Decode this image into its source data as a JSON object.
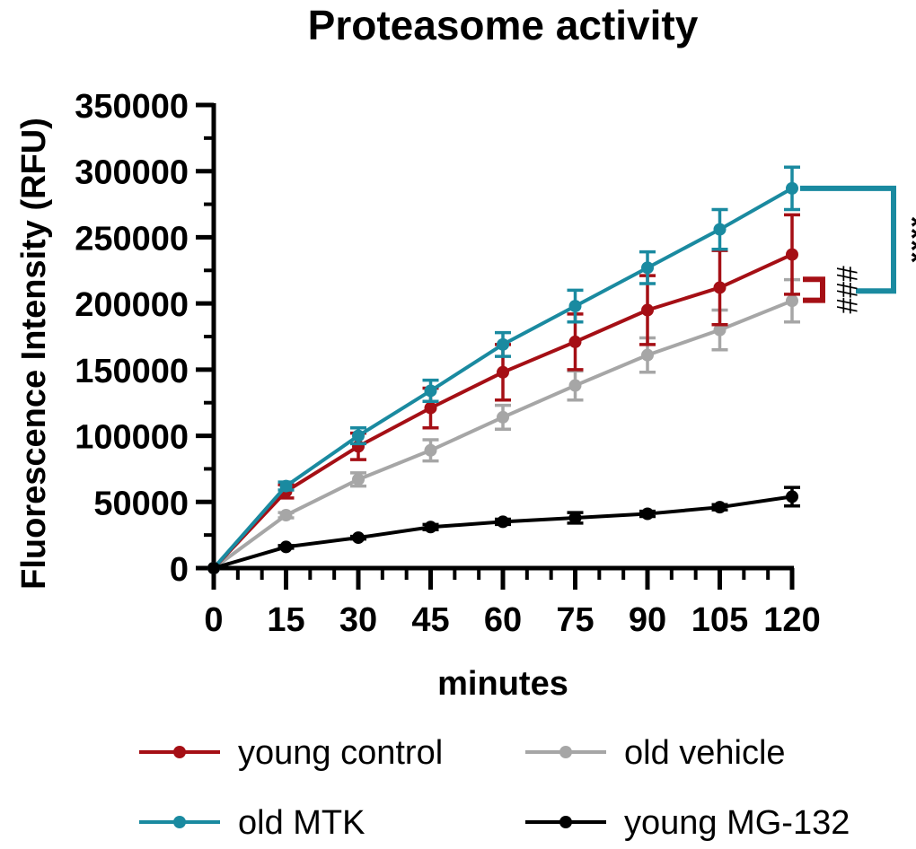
{
  "chart_data": {
    "type": "line",
    "title": "Proteasome activity",
    "xlabel": "minutes",
    "ylabel": "Fluorescence Intensity (RFU)",
    "x": [
      0,
      15,
      30,
      45,
      60,
      75,
      90,
      105,
      120
    ],
    "xticks": [
      "0",
      "15",
      "30",
      "45",
      "60",
      "75",
      "90",
      "105",
      "120"
    ],
    "yticks": [
      "0",
      "50000",
      "100000",
      "150000",
      "200000",
      "250000",
      "300000",
      "350000"
    ],
    "ylim": [
      0,
      350000
    ],
    "xlim": [
      0,
      120
    ],
    "legend_position": "bottom",
    "series": [
      {
        "name": "old vehicle",
        "color": "#a6a6a6",
        "values": [
          0,
          40000,
          67000,
          89000,
          114000,
          138000,
          161000,
          180000,
          202000
        ],
        "errors": [
          0,
          2000,
          5000,
          8000,
          9000,
          11000,
          13000,
          15000,
          16000
        ]
      },
      {
        "name": "young control",
        "color": "#a50f15",
        "values": [
          0,
          58000,
          92000,
          121000,
          148000,
          171000,
          195000,
          212000,
          237000
        ],
        "errors": [
          0,
          5000,
          10000,
          15000,
          21000,
          21000,
          26000,
          28000,
          30000
        ]
      },
      {
        "name": "old MTK",
        "color": "#1a8aa0",
        "values": [
          0,
          62000,
          100000,
          134000,
          169000,
          198000,
          227000,
          256000,
          287000
        ],
        "errors": [
          0,
          3000,
          6000,
          8000,
          9000,
          12000,
          12000,
          15000,
          16000
        ]
      },
      {
        "name": "young MG-132",
        "color": "#000000",
        "values": [
          0,
          16000,
          23000,
          31000,
          35000,
          38000,
          41000,
          46000,
          54000
        ],
        "errors": [
          0,
          1000,
          1000,
          2000,
          2000,
          4000,
          2000,
          2000,
          7000
        ]
      }
    ],
    "annotations": [
      {
        "text": "****",
        "color": "#1a8aa0",
        "between": [
          "old MTK",
          "old vehicle"
        ]
      },
      {
        "text": "###",
        "color": "#a50f15",
        "between": [
          "young control",
          "old vehicle"
        ]
      }
    ],
    "legend": [
      {
        "label": "young control",
        "color": "#a50f15"
      },
      {
        "label": "old vehicle",
        "color": "#a6a6a6"
      },
      {
        "label": "old MTK",
        "color": "#1a8aa0"
      },
      {
        "label": "young MG-132",
        "color": "#000000"
      }
    ]
  }
}
